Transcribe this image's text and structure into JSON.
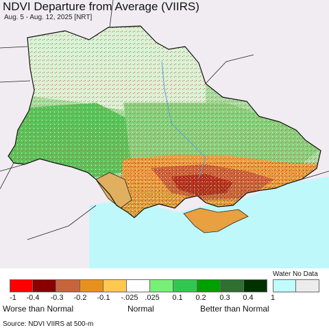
{
  "title": "NDVI Departure from Average (VIIRS)",
  "subtitle": "Aug. 5 - Aug. 12, 2025 [NRT]",
  "map": {
    "land_outside_color": "#f0ecf2",
    "water_color": "#bff8fb",
    "border_color": "#222222",
    "region": "Ukraine"
  },
  "legend": {
    "water_label": "Water",
    "no_data_label": "No Data",
    "water_no_data_label": "Water No Data",
    "colors": [
      "#ff0000",
      "#8b0000",
      "#c8643c",
      "#e8901e",
      "#ffc850",
      "#ffffff",
      "#78f078",
      "#32c850",
      "#00a000",
      "#2f6f2f",
      "#003200"
    ],
    "water_color": "#c0fcfc",
    "no_data_color": "#ececec",
    "ticks": [
      "-1",
      "-0.4",
      "-0.3",
      "-0.2",
      "-0.1",
      "-.025",
      ".025",
      "0.1",
      "0.2",
      "0.3",
      "0.4",
      "1"
    ],
    "categories": [
      "Worse than Normal",
      "Normal",
      "Better than Normal"
    ]
  },
  "source": "Source: NDVI VIIRS at 500-m"
}
